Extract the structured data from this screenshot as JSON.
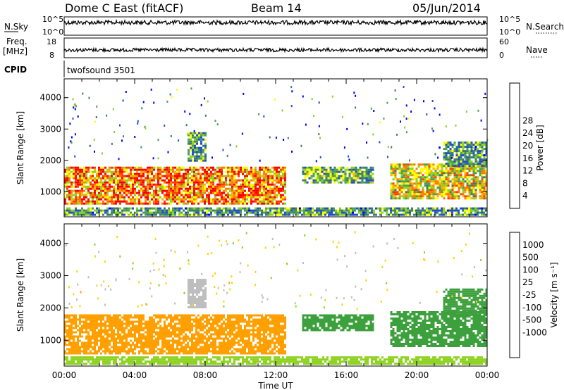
{
  "header": {
    "title": "Dome C East (fitACF)",
    "beam": "Beam 14",
    "date": "05/Jun/2014"
  },
  "aux_panels": {
    "nsky_label": "N.Sky",
    "nsearch_label": "N.Search",
    "nsky_ticks": [
      "10^5",
      "10^0"
    ],
    "nsearch_ticks": [
      "10^5",
      "10^0"
    ],
    "freq_label": "Freq.",
    "freq_unit": "[MHz]",
    "freq_ticks": [
      "18",
      "8"
    ],
    "nave_label": "Nave",
    "nave_ticks": [
      "60",
      "0"
    ],
    "cpid_label": "CPID",
    "cpid_value": "twofsound 3501"
  },
  "colors": {
    "power": [
      "#0000ff",
      "#2050c8",
      "#3a7d6a",
      "#4aa050",
      "#8cd21e",
      "#ffff00",
      "#ffb000",
      "#ff7800",
      "#ff3c00",
      "#ff0000"
    ],
    "velocity": [
      "#ff0000",
      "#ff6a00",
      "#ffa000",
      "#ffd200",
      "#bebebe",
      "#bebebe",
      "#8cd21e",
      "#3ca03c",
      "#2d7a8a",
      "#2040c8"
    ]
  },
  "chart_data": [
    {
      "type": "heatmap",
      "name": "Power",
      "xlabel": "",
      "ylabel": "Slant Range [km]",
      "x_ticks": [
        "00:00",
        "04:00",
        "08:00",
        "12:00",
        "16:00",
        "20:00",
        "00:00"
      ],
      "y_ticks": [
        1000,
        2000,
        3000,
        4000
      ],
      "ylim": [
        200,
        4600
      ],
      "xlim_hours": [
        0,
        24
      ],
      "colorbar": {
        "label": "Power [dB]",
        "ticks": [
          4,
          8,
          12,
          16,
          20,
          24,
          28
        ],
        "range": [
          0,
          32
        ]
      },
      "bands": [
        {
          "t0": 0.0,
          "t1": 12.5,
          "r0": 600,
          "r1": 1800,
          "level": 24
        },
        {
          "t0": 0.0,
          "t1": 24.0,
          "r0": 250,
          "r1": 500,
          "level": 10
        },
        {
          "t0": 13.5,
          "t1": 17.5,
          "r0": 1300,
          "r1": 1800,
          "level": 12
        },
        {
          "t0": 18.5,
          "t1": 24.0,
          "r0": 800,
          "r1": 1900,
          "level": 18
        },
        {
          "t0": 7.0,
          "t1": 8.0,
          "r0": 2000,
          "r1": 2900,
          "level": 10
        },
        {
          "t0": 21.5,
          "t1": 24.0,
          "r0": 1800,
          "r1": 2600,
          "level": 10
        }
      ]
    },
    {
      "type": "heatmap",
      "name": "Velocity",
      "xlabel": "Time UT",
      "ylabel": "Slant Range [km]",
      "x_ticks": [
        "00:00",
        "04:00",
        "08:00",
        "12:00",
        "16:00",
        "20:00",
        "00:00"
      ],
      "y_ticks": [
        1000,
        2000,
        3000,
        4000
      ],
      "ylim": [
        200,
        4600
      ],
      "xlim_hours": [
        0,
        24
      ],
      "colorbar": {
        "label": "Velocity [m s⁻¹]",
        "ticks": [
          1000,
          500,
          100,
          25,
          -25,
          -100,
          -500,
          -1000
        ]
      },
      "bands": [
        {
          "t0": 0.0,
          "t1": 12.5,
          "r0": 600,
          "r1": 1800,
          "level": -150
        },
        {
          "t0": 0.0,
          "t1": 24.0,
          "r0": 250,
          "r1": 500,
          "level": 50
        },
        {
          "t0": 13.5,
          "t1": 17.5,
          "r0": 1300,
          "r1": 1800,
          "level": 150
        },
        {
          "t0": 18.5,
          "t1": 24.0,
          "r0": 800,
          "r1": 1900,
          "level": 200
        },
        {
          "t0": 7.0,
          "t1": 8.0,
          "r0": 2000,
          "r1": 2900,
          "level": 0
        },
        {
          "t0": 21.5,
          "t1": 24.0,
          "r0": 1800,
          "r1": 2600,
          "level": 250
        }
      ]
    }
  ]
}
